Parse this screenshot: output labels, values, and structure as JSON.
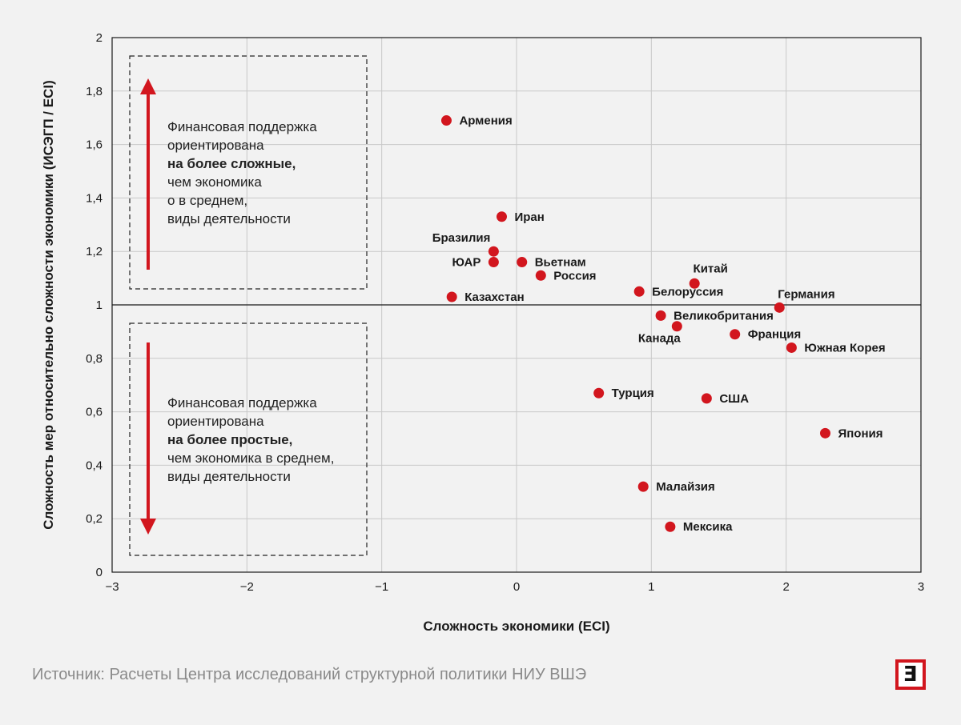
{
  "chart_data": {
    "type": "scatter",
    "xlabel": "Сложность экономики (ECI)",
    "ylabel": "Сложность мер относительно сложности экономики (ИСЭГП / ECI)",
    "xlim": [
      -3,
      3
    ],
    "ylim": [
      0,
      2
    ],
    "x_ticks": [
      "−3",
      "−2",
      "−1",
      "0",
      "1",
      "2",
      "3"
    ],
    "x_tick_values": [
      -3,
      -2,
      -1,
      0,
      1,
      2,
      3
    ],
    "y_ticks": [
      "0",
      "0,2",
      "0,4",
      "0,6",
      "0,8",
      "1",
      "1,2",
      "1,4",
      "1,6",
      "1,8",
      "2"
    ],
    "y_tick_values": [
      0,
      0.2,
      0.4,
      0.6,
      0.8,
      1,
      1.2,
      1.4,
      1.6,
      1.8,
      2
    ],
    "reference_line_y": 1,
    "grid": true,
    "point_color": "#d2161e",
    "points": [
      {
        "label": "Армения",
        "x": -0.52,
        "y": 1.69,
        "label_pos": "right"
      },
      {
        "label": "Иран",
        "x": -0.11,
        "y": 1.33,
        "label_pos": "right"
      },
      {
        "label": "Бразилия",
        "x": -0.17,
        "y": 1.2,
        "label_pos": "above-left"
      },
      {
        "label": "ЮАР",
        "x": -0.17,
        "y": 1.16,
        "label_pos": "left"
      },
      {
        "label": "Вьетнам",
        "x": 0.04,
        "y": 1.16,
        "label_pos": "right"
      },
      {
        "label": "Россия",
        "x": 0.18,
        "y": 1.11,
        "label_pos": "right"
      },
      {
        "label": "Казахстан",
        "x": -0.48,
        "y": 1.03,
        "label_pos": "right"
      },
      {
        "label": "Китай",
        "x": 1.32,
        "y": 1.08,
        "label_pos": "above"
      },
      {
        "label": "Белоруссия",
        "x": 0.91,
        "y": 1.05,
        "label_pos": "right"
      },
      {
        "label": "Германия",
        "x": 1.95,
        "y": 0.99,
        "label_pos": "above-right"
      },
      {
        "label": "Великобритания",
        "x": 1.07,
        "y": 0.96,
        "label_pos": "right"
      },
      {
        "label": "Канада",
        "x": 1.19,
        "y": 0.92,
        "label_pos": "below-left"
      },
      {
        "label": "Франция",
        "x": 1.62,
        "y": 0.89,
        "label_pos": "right"
      },
      {
        "label": "Южная Корея",
        "x": 2.04,
        "y": 0.84,
        "label_pos": "right"
      },
      {
        "label": "Турция",
        "x": 0.61,
        "y": 0.67,
        "label_pos": "right"
      },
      {
        "label": "США",
        "x": 1.41,
        "y": 0.65,
        "label_pos": "right"
      },
      {
        "label": "Япония",
        "x": 2.29,
        "y": 0.52,
        "label_pos": "right"
      },
      {
        "label": "Малайзия",
        "x": 0.94,
        "y": 0.32,
        "label_pos": "right"
      },
      {
        "label": "Мексика",
        "x": 1.14,
        "y": 0.17,
        "label_pos": "right"
      }
    ]
  },
  "notes": {
    "upper": {
      "line1": "Финансовая поддержка",
      "line2": "ориентирована",
      "line3": "на более сложные,",
      "line4": "чем экономика",
      "line5": "о в среднем,",
      "line6": "виды деятельности"
    },
    "lower": {
      "line1": "Финансовая поддержка",
      "line2": "ориентирована",
      "line3": "на более простые,",
      "line4": "чем экономика в среднем,",
      "line5": "виды деятельности"
    }
  },
  "source": "Источник: Расчеты Центра исследований структурной политики НИУ ВШЭ",
  "logo": {
    "glyph": "Е",
    "color": "#d2161e"
  }
}
